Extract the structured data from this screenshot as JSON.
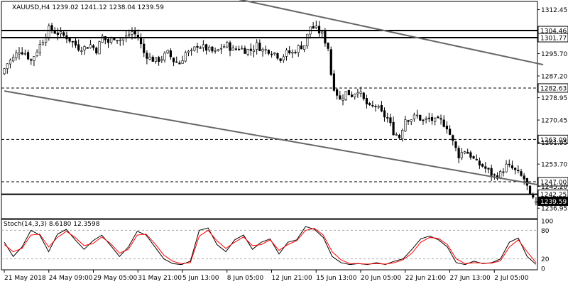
{
  "chart_data": [
    {
      "type": "candlestick",
      "symbol": "XAUUSD",
      "timeframe": "H4",
      "header": "XAUUSD,H4  1239.02 1241.12 1238.04 1239.59",
      "ohlc_last": {
        "open": 1239.02,
        "high": 1241.12,
        "low": 1238.04,
        "close": 1239.59
      },
      "ylim": [
        1233.5,
        1315.0
      ],
      "y_ticks": [
        "1312.45",
        "1304.46",
        "1301.77",
        "1295.70",
        "1287.20",
        "1282.63",
        "1278.95",
        "1270.45",
        "1263.09",
        "1261.95",
        "1253.70",
        "1247.00",
        "1245.20",
        "1242.25",
        "1239.59",
        "1236.95"
      ],
      "y_tick_values": [
        1312.45,
        1304.46,
        1301.77,
        1295.7,
        1287.2,
        1282.63,
        1278.95,
        1270.45,
        1263.09,
        1261.95,
        1253.7,
        1247.0,
        1245.2,
        1242.25,
        1239.59,
        1236.95
      ],
      "x_tick_labels": [
        "21 May 2018",
        "24 May 09:00",
        "29 May 05:00",
        "31 May 21:00",
        "5 Jun 13:00",
        "8 Jun 05:00",
        "12 Jun 21:00",
        "15 Jun 13:00",
        "20 Jun 05:00",
        "22 Jun 21:00",
        "27 Jun 13:00",
        "2 Jul 05:00"
      ],
      "bar_count": 180,
      "levels": [
        {
          "value": 1304.46,
          "style": "solid"
        },
        {
          "value": 1301.77,
          "style": "solid"
        },
        {
          "value": 1282.63,
          "style": "dashed"
        },
        {
          "value": 1263.09,
          "style": "dashed"
        },
        {
          "value": 1247.0,
          "style": "dashed"
        },
        {
          "value": 1242.25,
          "style": "solid"
        }
      ],
      "current_price": 1239.59,
      "trendlines": [
        {
          "from": [
            72,
            1318
          ],
          "to": [
            180,
            1291.5
          ]
        },
        {
          "from": [
            0,
            1281.5
          ],
          "to": [
            180,
            1245.5
          ]
        }
      ],
      "close_path": [
        [
          0,
          1288
        ],
        [
          2,
          1292
        ],
        [
          4,
          1294
        ],
        [
          6,
          1297
        ],
        [
          8,
          1296
        ],
        [
          10,
          1293
        ],
        [
          12,
          1297
        ],
        [
          14,
          1301
        ],
        [
          16,
          1305
        ],
        [
          18,
          1304
        ],
        [
          20,
          1303
        ],
        [
          22,
          1302
        ],
        [
          24,
          1300
        ],
        [
          26,
          1298
        ],
        [
          28,
          1298
        ],
        [
          30,
          1299
        ],
        [
          32,
          1297
        ],
        [
          34,
          1302
        ],
        [
          36,
          1300
        ],
        [
          38,
          1302
        ],
        [
          40,
          1301
        ],
        [
          42,
          1302
        ],
        [
          44,
          1304
        ],
        [
          46,
          1302
        ],
        [
          48,
          1296
        ],
        [
          50,
          1294
        ],
        [
          52,
          1293
        ],
        [
          54,
          1294
        ],
        [
          56,
          1296
        ],
        [
          58,
          1293
        ],
        [
          60,
          1292
        ],
        [
          62,
          1296
        ],
        [
          64,
          1296
        ],
        [
          66,
          1299
        ],
        [
          68,
          1298
        ],
        [
          70,
          1297
        ],
        [
          72,
          1296
        ],
        [
          74,
          1298
        ],
        [
          76,
          1299
        ],
        [
          78,
          1297
        ],
        [
          80,
          1298
        ],
        [
          82,
          1297
        ],
        [
          84,
          1297
        ],
        [
          86,
          1299
        ],
        [
          88,
          1297
        ],
        [
          90,
          1297
        ],
        [
          92,
          1296
        ],
        [
          94,
          1294
        ],
        [
          96,
          1296
        ],
        [
          98,
          1296
        ],
        [
          100,
          1298
        ],
        [
          102,
          1299
        ],
        [
          104,
          1306
        ],
        [
          106,
          1305
        ],
        [
          108,
          1303
        ],
        [
          110,
          1298
        ],
        [
          111,
          1288
        ],
        [
          112,
          1283
        ],
        [
          114,
          1278
        ],
        [
          116,
          1281
        ],
        [
          118,
          1280
        ],
        [
          120,
          1282
        ],
        [
          122,
          1278
        ],
        [
          124,
          1275
        ],
        [
          126,
          1276
        ],
        [
          128,
          1273
        ],
        [
          130,
          1271
        ],
        [
          132,
          1266
        ],
        [
          134,
          1264
        ],
        [
          136,
          1271
        ],
        [
          138,
          1271
        ],
        [
          140,
          1272
        ],
        [
          142,
          1270
        ],
        [
          144,
          1271
        ],
        [
          146,
          1270
        ],
        [
          148,
          1270
        ],
        [
          150,
          1268
        ],
        [
          152,
          1262
        ],
        [
          154,
          1257
        ],
        [
          156,
          1259
        ],
        [
          158,
          1257
        ],
        [
          160,
          1254
        ],
        [
          162,
          1253
        ],
        [
          164,
          1251
        ],
        [
          166,
          1249
        ],
        [
          168,
          1250
        ],
        [
          170,
          1253
        ],
        [
          172,
          1252
        ],
        [
          174,
          1250
        ],
        [
          176,
          1248
        ],
        [
          177,
          1245
        ],
        [
          178,
          1241
        ],
        [
          180,
          1239.59
        ]
      ]
    },
    {
      "type": "line",
      "name": "Stoch(14,3,3) 8.6180 12.3598",
      "label": "Stoch(14,3,3)",
      "values_text": "8.6180 12.3598",
      "ylim": [
        0,
        100
      ],
      "y_ticks": [
        "100",
        "80",
        "20",
        "0"
      ],
      "y_tick_values": [
        100,
        80,
        20,
        0
      ],
      "levels": [
        80,
        20
      ],
      "series": [
        {
          "name": "%K",
          "color": "#000000",
          "points": [
            [
              0,
              55
            ],
            [
              3,
              25
            ],
            [
              6,
              45
            ],
            [
              9,
              80
            ],
            [
              12,
              70
            ],
            [
              15,
              35
            ],
            [
              18,
              72
            ],
            [
              21,
              82
            ],
            [
              24,
              60
            ],
            [
              27,
              40
            ],
            [
              30,
              58
            ],
            [
              33,
              70
            ],
            [
              36,
              48
            ],
            [
              39,
              25
            ],
            [
              42,
              45
            ],
            [
              45,
              78
            ],
            [
              48,
              70
            ],
            [
              51,
              45
            ],
            [
              54,
              20
            ],
            [
              57,
              10
            ],
            [
              60,
              8
            ],
            [
              63,
              15
            ],
            [
              66,
              80
            ],
            [
              69,
              85
            ],
            [
              72,
              50
            ],
            [
              75,
              35
            ],
            [
              78,
              60
            ],
            [
              81,
              70
            ],
            [
              84,
              40
            ],
            [
              87,
              55
            ],
            [
              90,
              62
            ],
            [
              93,
              30
            ],
            [
              96,
              55
            ],
            [
              99,
              60
            ],
            [
              102,
              88
            ],
            [
              105,
              82
            ],
            [
              108,
              65
            ],
            [
              111,
              25
            ],
            [
              114,
              12
            ],
            [
              117,
              8
            ],
            [
              120,
              10
            ],
            [
              123,
              8
            ],
            [
              126,
              12
            ],
            [
              129,
              8
            ],
            [
              132,
              15
            ],
            [
              135,
              20
            ],
            [
              138,
              40
            ],
            [
              141,
              62
            ],
            [
              144,
              68
            ],
            [
              147,
              60
            ],
            [
              150,
              45
            ],
            [
              153,
              12
            ],
            [
              156,
              8
            ],
            [
              159,
              15
            ],
            [
              162,
              10
            ],
            [
              165,
              12
            ],
            [
              168,
              20
            ],
            [
              171,
              55
            ],
            [
              174,
              64
            ],
            [
              177,
              25
            ],
            [
              180,
              8.6
            ]
          ]
        },
        {
          "name": "%D",
          "color": "#ff0000",
          "points": [
            [
              0,
              50
            ],
            [
              3,
              35
            ],
            [
              6,
              42
            ],
            [
              9,
              70
            ],
            [
              12,
              72
            ],
            [
              15,
              45
            ],
            [
              18,
              65
            ],
            [
              21,
              78
            ],
            [
              24,
              65
            ],
            [
              27,
              48
            ],
            [
              30,
              52
            ],
            [
              33,
              66
            ],
            [
              36,
              52
            ],
            [
              39,
              32
            ],
            [
              42,
              40
            ],
            [
              45,
              70
            ],
            [
              48,
              72
            ],
            [
              51,
              52
            ],
            [
              54,
              28
            ],
            [
              57,
              15
            ],
            [
              60,
              10
            ],
            [
              63,
              12
            ],
            [
              66,
              68
            ],
            [
              69,
              80
            ],
            [
              72,
              58
            ],
            [
              75,
              42
            ],
            [
              78,
              55
            ],
            [
              81,
              66
            ],
            [
              84,
              48
            ],
            [
              87,
              50
            ],
            [
              90,
              60
            ],
            [
              93,
              38
            ],
            [
              96,
              50
            ],
            [
              99,
              58
            ],
            [
              102,
              80
            ],
            [
              105,
              84
            ],
            [
              108,
              70
            ],
            [
              111,
              35
            ],
            [
              114,
              18
            ],
            [
              117,
              10
            ],
            [
              120,
              10
            ],
            [
              123,
              9
            ],
            [
              126,
              10
            ],
            [
              129,
              9
            ],
            [
              132,
              12
            ],
            [
              135,
              18
            ],
            [
              138,
              32
            ],
            [
              141,
              55
            ],
            [
              144,
              65
            ],
            [
              147,
              63
            ],
            [
              150,
              50
            ],
            [
              153,
              20
            ],
            [
              156,
              10
            ],
            [
              159,
              12
            ],
            [
              162,
              11
            ],
            [
              165,
              11
            ],
            [
              168,
              16
            ],
            [
              171,
              45
            ],
            [
              174,
              60
            ],
            [
              177,
              35
            ],
            [
              180,
              12.36
            ]
          ]
        }
      ]
    }
  ]
}
